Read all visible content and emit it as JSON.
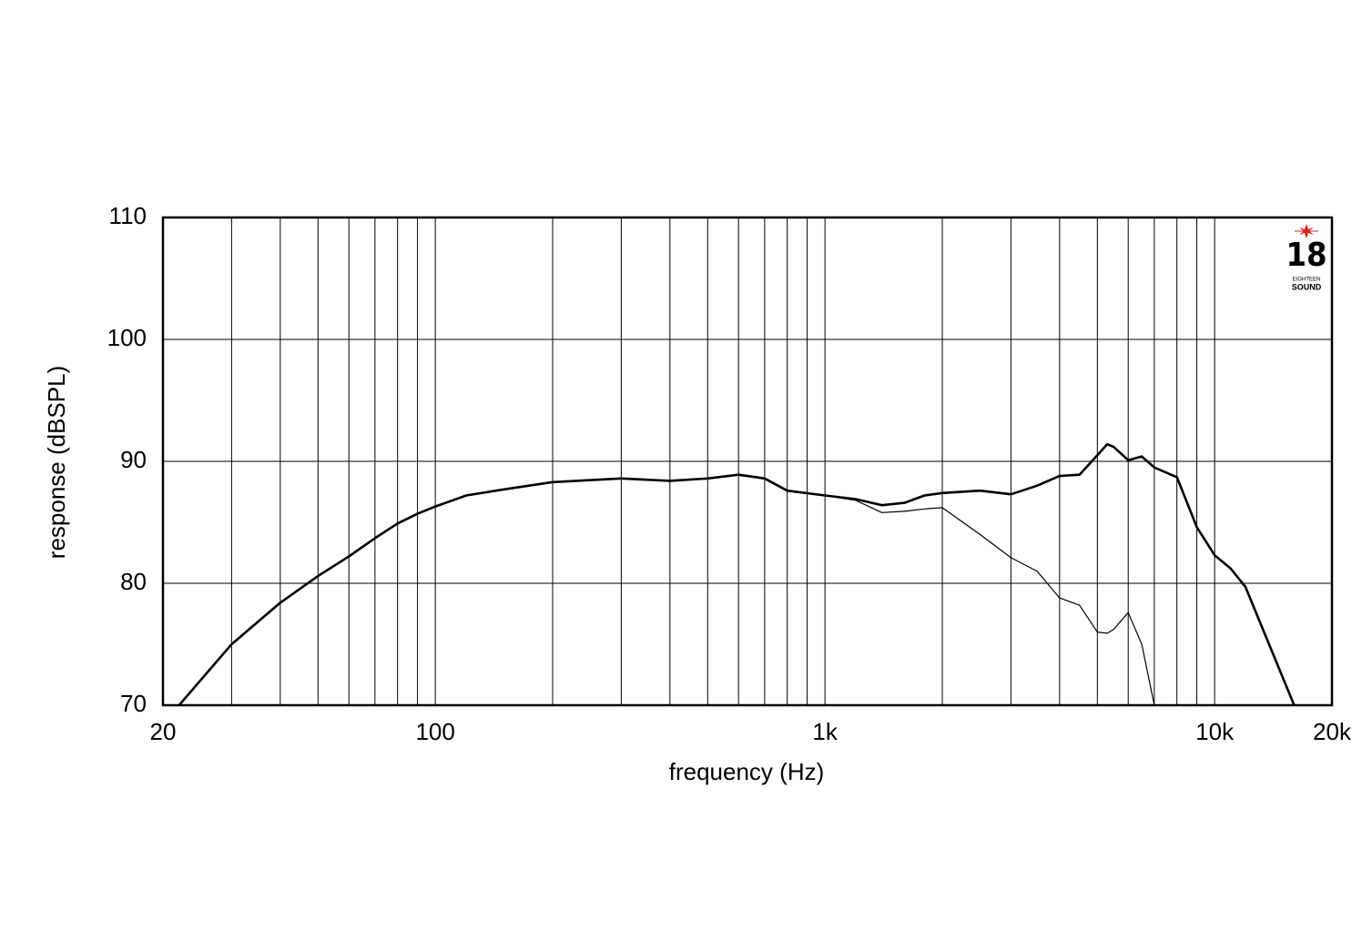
{
  "chart_data": {
    "type": "line",
    "xlabel": "frequency (Hz)",
    "ylabel": "response (dBSPL)",
    "xscale": "log",
    "x": [
      22,
      30,
      40,
      50,
      60,
      70,
      80,
      90,
      100,
      120,
      150,
      200,
      300,
      400,
      500,
      600,
      700,
      800,
      1000,
      1200,
      1400,
      1600,
      1800,
      2000,
      2500,
      3000,
      3500,
      4000,
      4500,
      5000,
      5300,
      5500,
      6000,
      6500,
      7000,
      8000,
      9000,
      10000,
      11000,
      12000,
      14000,
      16000
    ],
    "series": [
      {
        "color": "#000000",
        "width": 2.6,
        "values": [
          70,
          75,
          78.4,
          80.6,
          82.2,
          83.7,
          84.9,
          85.7,
          86.3,
          87.2,
          87.7,
          88.3,
          88.6,
          88.4,
          88.6,
          88.9,
          88.6,
          87.6,
          87.2,
          86.9,
          86.4,
          86.6,
          87.2,
          87.4,
          87.6,
          87.3,
          88.0,
          88.8,
          88.9,
          90.5,
          91.4,
          91.2,
          90.1,
          90.4,
          89.5,
          88.7,
          84.6,
          82.3,
          81.2,
          79.7,
          74.5,
          70
        ]
      },
      {
        "color": "#000000",
        "width": 1.2,
        "values": [
          null,
          null,
          null,
          null,
          null,
          null,
          null,
          null,
          null,
          null,
          null,
          null,
          null,
          null,
          null,
          null,
          null,
          null,
          87.2,
          86.8,
          85.8,
          85.9,
          86.1,
          86.2,
          84.0,
          82.1,
          81.0,
          78.8,
          78.2,
          76.0,
          75.9,
          76.2,
          77.6,
          75.0,
          70,
          null,
          null,
          null,
          null,
          null,
          null,
          null
        ]
      }
    ],
    "xlim": [
      20,
      20000
    ],
    "ylim": [
      70,
      110
    ],
    "xticks": [
      20,
      100,
      {
        "value": 1000,
        "label": "1k"
      },
      {
        "value": 10000,
        "label": "10k"
      },
      {
        "value": 20000,
        "label": "20k"
      }
    ],
    "xgrid": [
      30,
      40,
      50,
      60,
      70,
      80,
      90,
      200,
      300,
      400,
      500,
      600,
      700,
      800,
      900,
      2000,
      3000,
      4000,
      5000,
      6000,
      7000,
      8000,
      9000
    ],
    "yticks": [
      70,
      80,
      90,
      100,
      110
    ],
    "grid": true
  },
  "logo": {
    "number": "18",
    "line1": "EIGHTEEN",
    "line2": "SOUND"
  }
}
